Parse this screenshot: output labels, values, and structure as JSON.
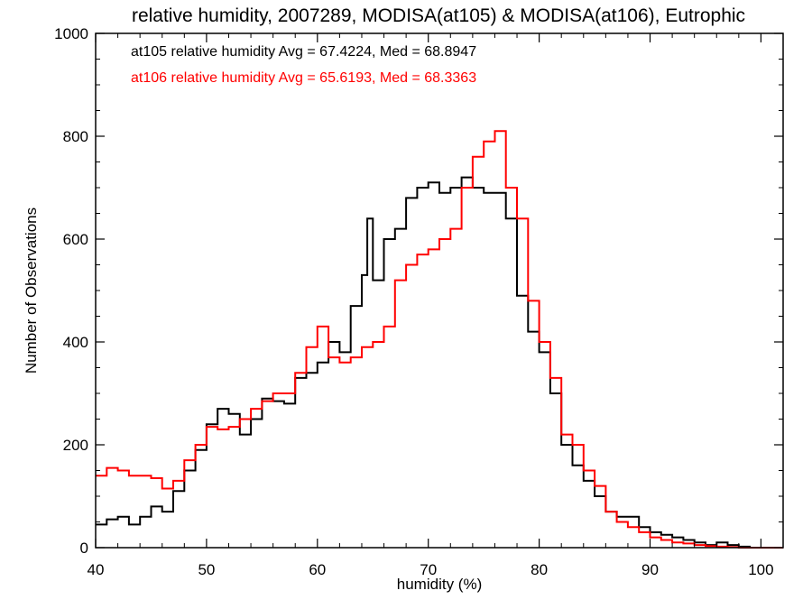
{
  "chart_data": {
    "type": "line",
    "title": "relative humidity, 2007289, MODISA(at105) & MODISA(at106), Eutrophic",
    "xlabel": "humidity (%)",
    "ylabel": "Number of Observations",
    "xlim": [
      40,
      102
    ],
    "ylim": [
      0,
      1000
    ],
    "xticks": [
      40,
      50,
      60,
      70,
      80,
      90,
      100
    ],
    "yticks": [
      0,
      200,
      400,
      600,
      800,
      1000
    ],
    "grid": false,
    "annotations": [
      {
        "text": "at105 relative humidity Avg = 67.4224, Med = 68.8947",
        "color": "#000000"
      },
      {
        "text": "at106 relative humidity Avg = 65.6193, Med = 68.3363",
        "color": "#ff0000"
      }
    ],
    "series": [
      {
        "color": "#000000",
        "x": [
          40,
          41,
          42,
          43,
          44,
          45,
          46,
          47,
          48,
          49,
          50,
          51,
          52,
          53,
          54,
          55,
          56,
          57,
          58,
          59,
          60,
          61,
          62,
          63,
          64,
          64.5,
          65,
          66,
          67,
          68,
          69,
          70,
          71,
          72,
          73,
          74,
          75,
          76,
          77,
          78,
          79,
          80,
          81,
          82,
          83,
          84,
          85,
          86,
          87,
          88,
          89,
          90,
          91,
          92,
          93,
          94,
          95,
          96,
          97,
          98,
          99,
          100,
          101,
          102
        ],
        "y": [
          45,
          55,
          60,
          45,
          60,
          80,
          70,
          110,
          150,
          190,
          240,
          270,
          260,
          220,
          250,
          290,
          285,
          280,
          330,
          340,
          360,
          400,
          380,
          470,
          530,
          640,
          520,
          600,
          620,
          680,
          700,
          710,
          690,
          700,
          720,
          700,
          690,
          690,
          640,
          490,
          420,
          380,
          300,
          200,
          160,
          130,
          100,
          70,
          60,
          60,
          40,
          30,
          25,
          20,
          15,
          10,
          5,
          10,
          5,
          2,
          0,
          0,
          0,
          0
        ]
      },
      {
        "color": "#ff0000",
        "x": [
          40,
          41,
          42,
          43,
          44,
          45,
          46,
          47,
          48,
          49,
          50,
          51,
          52,
          53,
          54,
          55,
          56,
          57,
          58,
          59,
          60,
          61,
          62,
          63,
          64,
          65,
          66,
          67,
          68,
          69,
          70,
          71,
          72,
          73,
          74,
          75,
          76,
          77,
          78,
          79,
          80,
          81,
          82,
          83,
          84,
          85,
          86,
          87,
          88,
          89,
          90,
          91,
          92,
          93,
          94,
          95,
          96,
          97,
          98,
          99,
          100,
          101,
          102
        ],
        "y": [
          140,
          155,
          150,
          140,
          140,
          135,
          115,
          130,
          170,
          200,
          235,
          230,
          235,
          250,
          270,
          285,
          300,
          300,
          340,
          390,
          430,
          370,
          360,
          370,
          390,
          400,
          430,
          520,
          550,
          570,
          580,
          600,
          620,
          700,
          760,
          790,
          810,
          700,
          640,
          480,
          400,
          330,
          220,
          200,
          150,
          120,
          70,
          50,
          40,
          30,
          20,
          15,
          10,
          8,
          5,
          3,
          2,
          1,
          0,
          0,
          0,
          0,
          0
        ]
      }
    ]
  }
}
